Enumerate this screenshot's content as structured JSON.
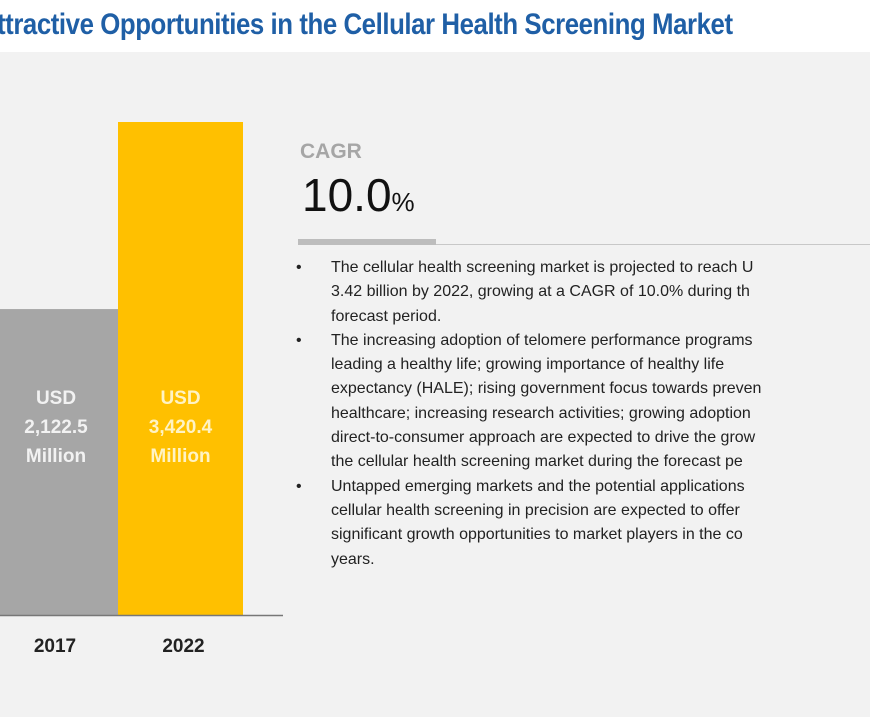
{
  "title": "ttractive Opportunities in the Cellular Health Screening Market",
  "chart_data": {
    "type": "bar",
    "categories": [
      "2017",
      "2022"
    ],
    "values": [
      2122.5,
      3420.4
    ],
    "unit": "USD Million",
    "data_labels": [
      [
        "USD",
        "2,122.5",
        "Million"
      ],
      [
        "USD",
        "3,420.4",
        "Million"
      ]
    ],
    "colors": [
      "#a6a6a6",
      "#ffc000"
    ],
    "label_colors": [
      "#f2f2f2",
      "#fff3c4"
    ],
    "ylim": [
      0,
      3420.4
    ],
    "grid": false
  },
  "cagr": {
    "label": "CAGR",
    "value": "10.0",
    "unit": "%"
  },
  "bullets": [
    {
      "lines": [
        "The cellular health screening market is projected to reach U",
        "3.42 billion by 2022, growing at a CAGR of 10.0% during th",
        "forecast period."
      ]
    },
    {
      "lines": [
        "The increasing adoption of telomere performance programs",
        "leading a healthy life; growing importance of healthy life",
        "expectancy (HALE); rising government focus towards preven",
        "healthcare; increasing research activities; growing adoption",
        "direct-to-consumer approach are expected to drive the grow",
        "the cellular health screening market during the forecast pe"
      ]
    },
    {
      "lines": [
        "Untapped emerging markets and the potential applications",
        "cellular health screening in precision are expected to offer",
        "significant growth opportunities to market players in the co",
        "years."
      ]
    }
  ],
  "colors": {
    "title": "#1f5fa6",
    "background": "#f2f2f2"
  }
}
